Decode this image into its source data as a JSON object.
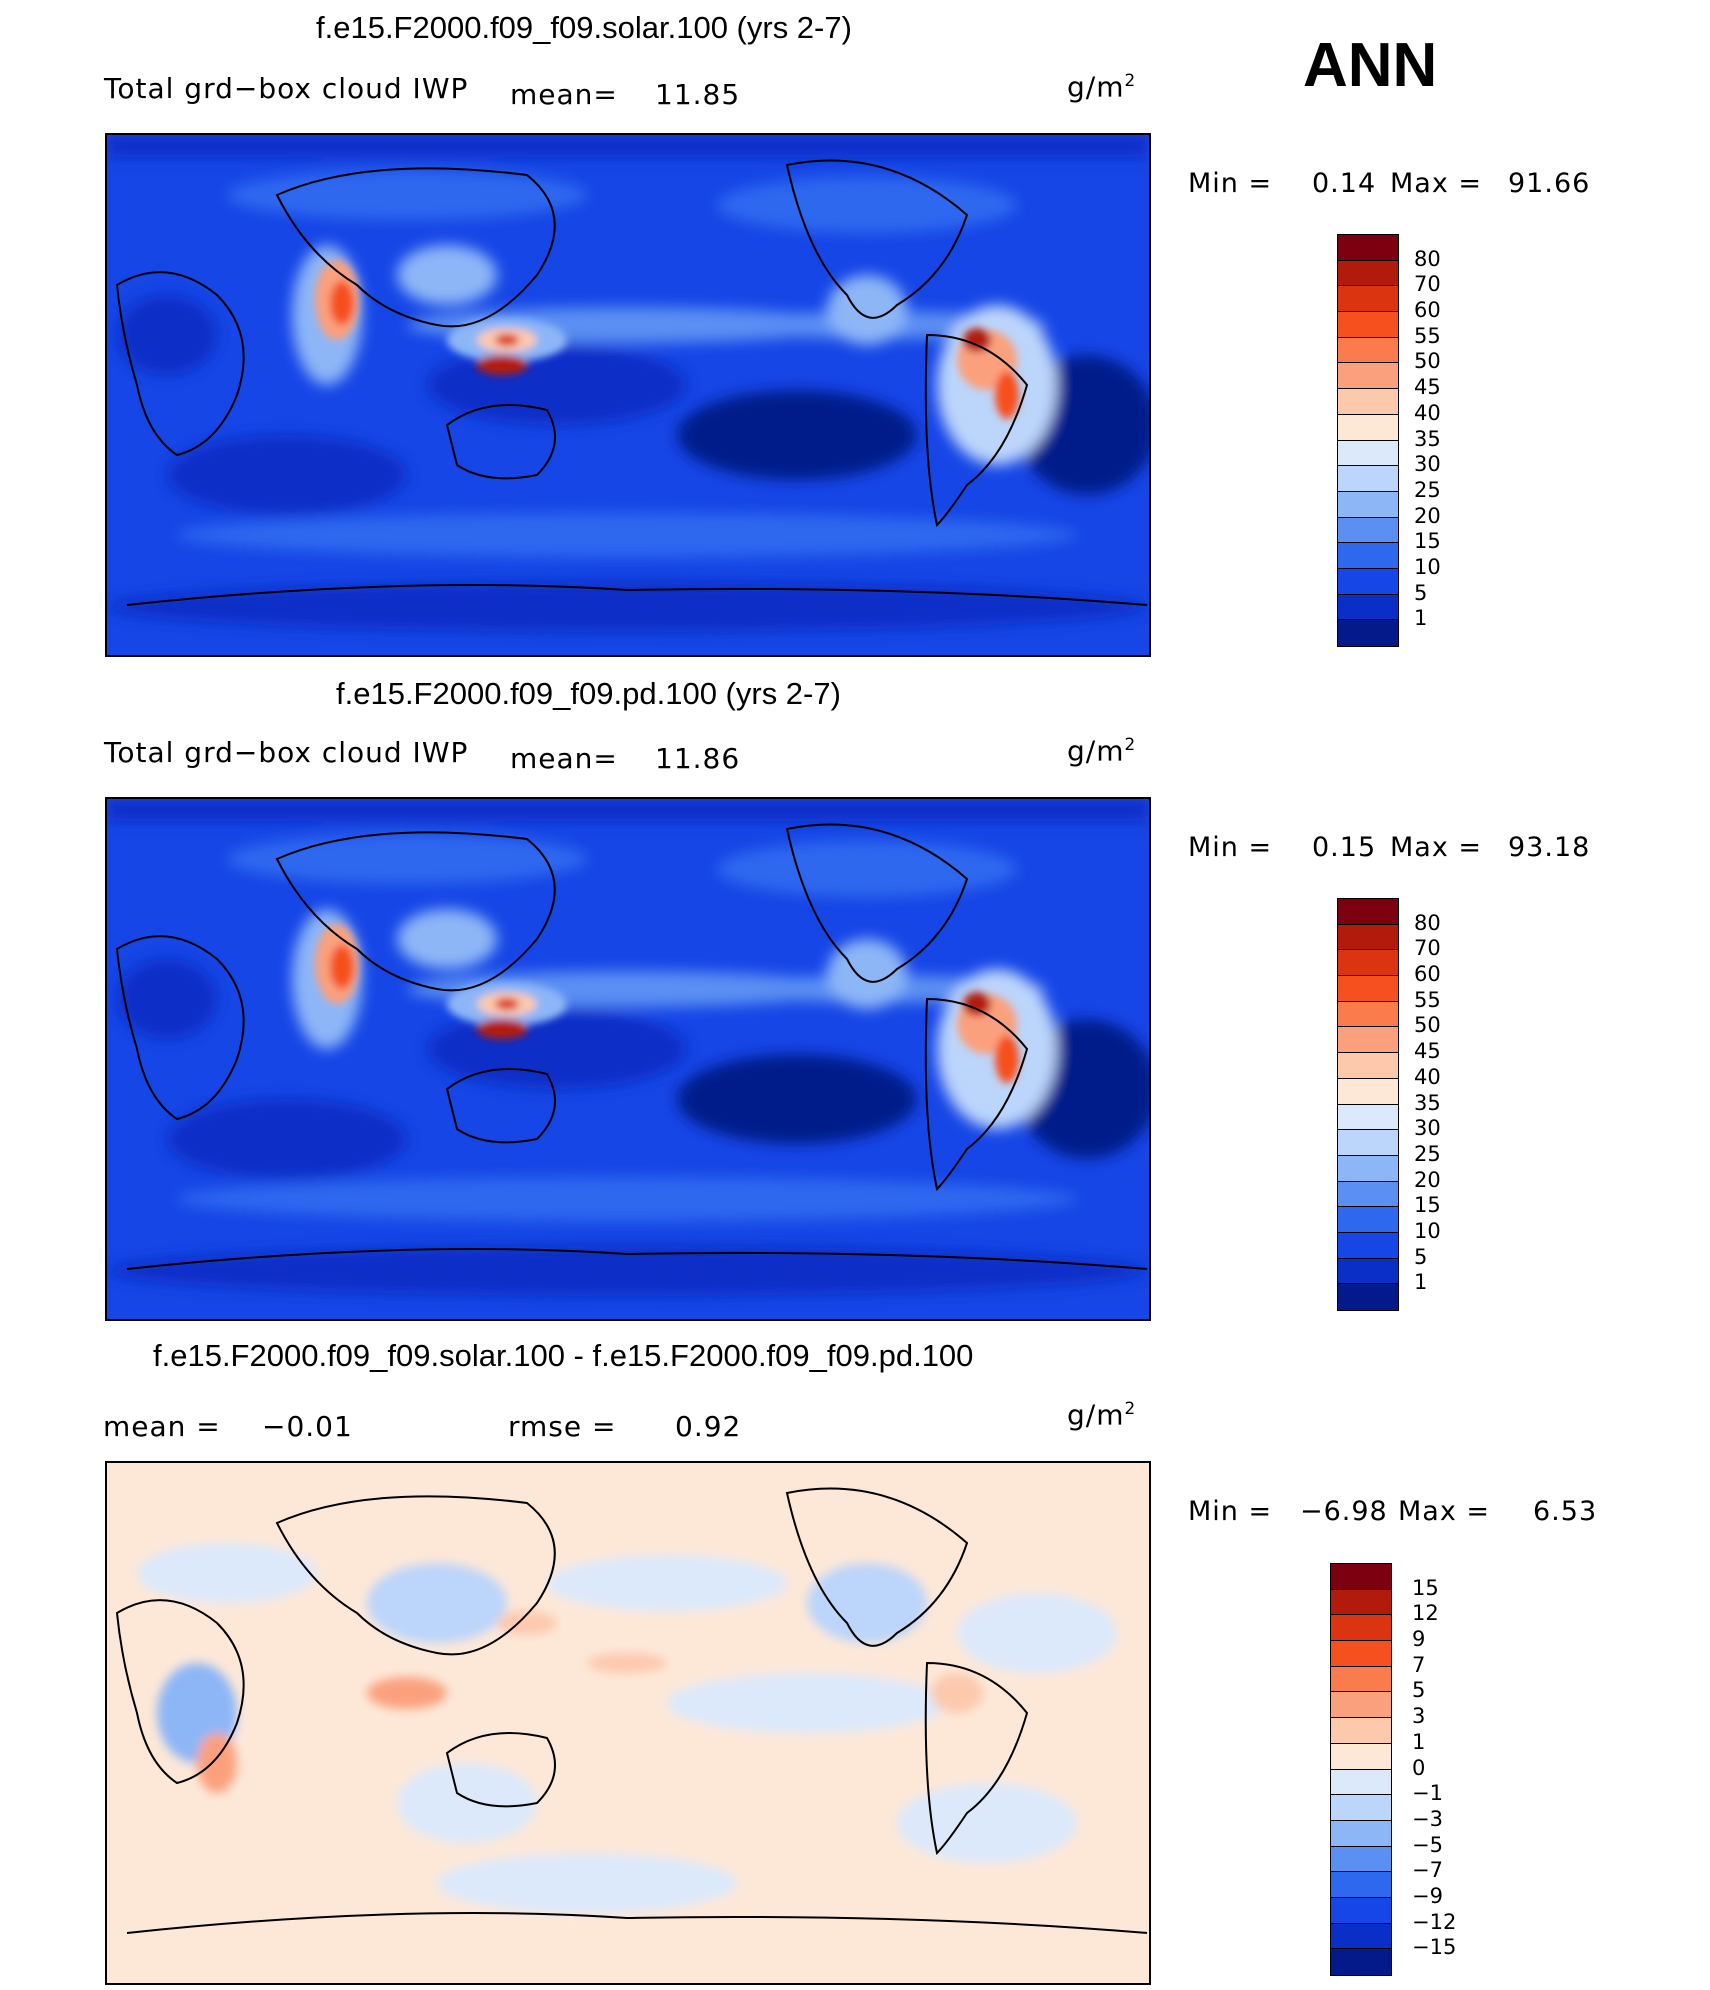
{
  "season": "ANN",
  "panels": [
    {
      "title": "f.e15.F2000.f09_f09.solar.100 (yrs 2-7)",
      "variable": "Total grd−box cloud IWP",
      "mean_label": "mean=",
      "mean_value": "11.85",
      "units_base": "g/m",
      "units_exp": "2",
      "min_label": "Min =",
      "min_value": "0.14",
      "max_label": "Max =",
      "max_value": "91.66",
      "colorbar": {
        "labels": [
          "80",
          "70",
          "60",
          "55",
          "50",
          "45",
          "40",
          "35",
          "30",
          "25",
          "20",
          "15",
          "10",
          "5",
          "1"
        ],
        "colors": [
          "#7d0010",
          "#b21a0c",
          "#db3410",
          "#f6501f",
          "#fa7b4c",
          "#fba07d",
          "#fcc9ad",
          "#fde8d8",
          "#dce9fb",
          "#bcd5fb",
          "#8db6f7",
          "#5b8ff2",
          "#2d68ef",
          "#1646e6",
          "#0a2fc7",
          "#051a8a"
        ]
      }
    },
    {
      "title": "f.e15.F2000.f09_f09.pd.100 (yrs 2-7)",
      "variable": "Total grd−box cloud IWP",
      "mean_label": "mean=",
      "mean_value": "11.86",
      "units_base": "g/m",
      "units_exp": "2",
      "min_label": "Min =",
      "min_value": "0.15",
      "max_label": "Max =",
      "max_value": "93.18",
      "colorbar": {
        "labels": [
          "80",
          "70",
          "60",
          "55",
          "50",
          "45",
          "40",
          "35",
          "30",
          "25",
          "20",
          "15",
          "10",
          "5",
          "1"
        ],
        "colors": [
          "#7d0010",
          "#b21a0c",
          "#db3410",
          "#f6501f",
          "#fa7b4c",
          "#fba07d",
          "#fcc9ad",
          "#fde8d8",
          "#dce9fb",
          "#bcd5fb",
          "#8db6f7",
          "#5b8ff2",
          "#2d68ef",
          "#1646e6",
          "#0a2fc7",
          "#051a8a"
        ]
      }
    },
    {
      "title": "f.e15.F2000.f09_f09.solar.100 - f.e15.F2000.f09_f09.pd.100",
      "mean_label": "mean =",
      "mean_value": "−0.01",
      "rmse_label": "rmse =",
      "rmse_value": "0.92",
      "units_base": "g/m",
      "units_exp": "2",
      "min_label": "Min =",
      "min_value": "−6.98",
      "max_label": "Max =",
      "max_value": "6.53",
      "colorbar": {
        "labels": [
          "15",
          "12",
          "9",
          "7",
          "5",
          "3",
          "1",
          "0",
          "−1",
          "−3",
          "−5",
          "−7",
          "−9",
          "−12",
          "−15"
        ],
        "colors": [
          "#7d0010",
          "#b21a0c",
          "#db3410",
          "#f6501f",
          "#fa7b4c",
          "#fba07d",
          "#fcc9ad",
          "#fde8d8",
          "#dce9fb",
          "#bcd5fb",
          "#8db6f7",
          "#5b8ff2",
          "#2d68ef",
          "#1646e6",
          "#0a2fc7",
          "#051a8a"
        ]
      }
    }
  ]
}
